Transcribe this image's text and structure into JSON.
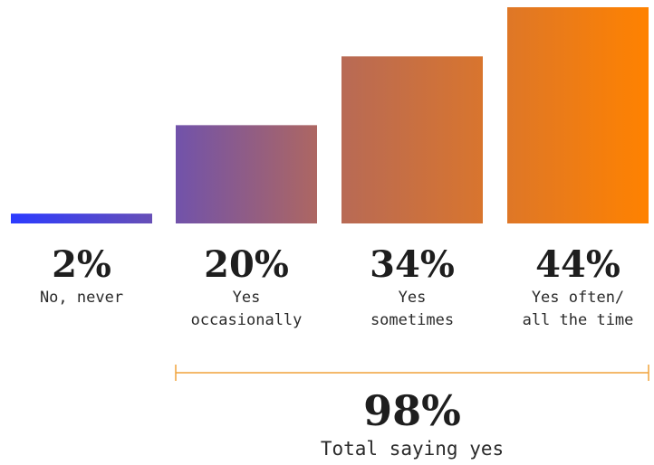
{
  "chart_data": {
    "type": "bar",
    "categories": [
      [
        "No, never"
      ],
      [
        "Yes",
        "occasionally"
      ],
      [
        "Yes",
        "sometimes"
      ],
      [
        "Yes often/",
        "all the time"
      ]
    ],
    "values": [
      2,
      20,
      34,
      44
    ],
    "value_labels": [
      "2%",
      "20%",
      "34%",
      "44%"
    ],
    "ylim": [
      0,
      44
    ],
    "grid": false,
    "gradient": {
      "start": "#2b3bff",
      "mid": "#b86a55",
      "end": "#ff8200"
    },
    "annotation": {
      "value_label": "98%",
      "text": "Total saying yes",
      "spans_categories": [
        1,
        3
      ],
      "bracket_color": "#f0a23a"
    }
  }
}
